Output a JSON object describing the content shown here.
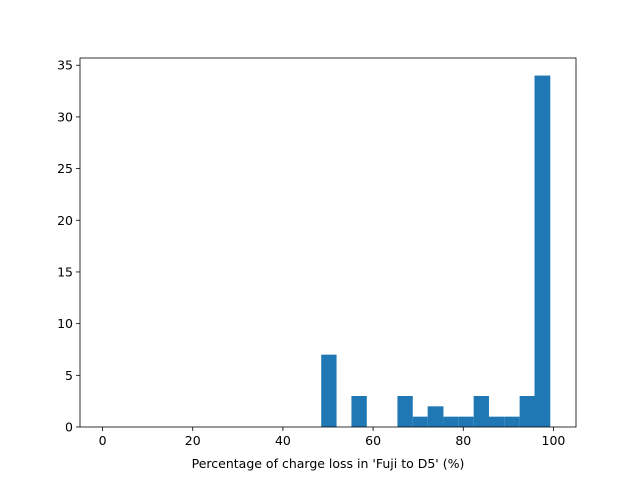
{
  "chart_data": {
    "type": "bar",
    "title": "",
    "xlabel": "Percentage of charge loss in 'Fuji to D5' (%)",
    "ylabel": "",
    "xlim": [
      -5,
      105
    ],
    "ylim": [
      0,
      35.7
    ],
    "xticks": [
      0,
      20,
      40,
      60,
      80,
      100
    ],
    "yticks": [
      0,
      5,
      10,
      15,
      20,
      25,
      30,
      35
    ],
    "grid": false,
    "bar_color": "#1f77b4",
    "bins": [
      {
        "x0": 48.5,
        "x1": 51.9,
        "value": 7
      },
      {
        "x0": 55.2,
        "x1": 58.6,
        "value": 3
      },
      {
        "x0": 65.4,
        "x1": 68.8,
        "value": 3
      },
      {
        "x0": 68.8,
        "x1": 72.1,
        "value": 1
      },
      {
        "x0": 72.1,
        "x1": 75.6,
        "value": 2
      },
      {
        "x0": 75.6,
        "x1": 78.9,
        "value": 1
      },
      {
        "x0": 78.9,
        "x1": 82.3,
        "value": 1
      },
      {
        "x0": 82.3,
        "x1": 85.7,
        "value": 3
      },
      {
        "x0": 85.7,
        "x1": 89.1,
        "value": 1
      },
      {
        "x0": 89.1,
        "x1": 92.5,
        "value": 1
      },
      {
        "x0": 92.5,
        "x1": 95.8,
        "value": 3
      },
      {
        "x0": 95.8,
        "x1": 99.3,
        "value": 34
      }
    ]
  }
}
